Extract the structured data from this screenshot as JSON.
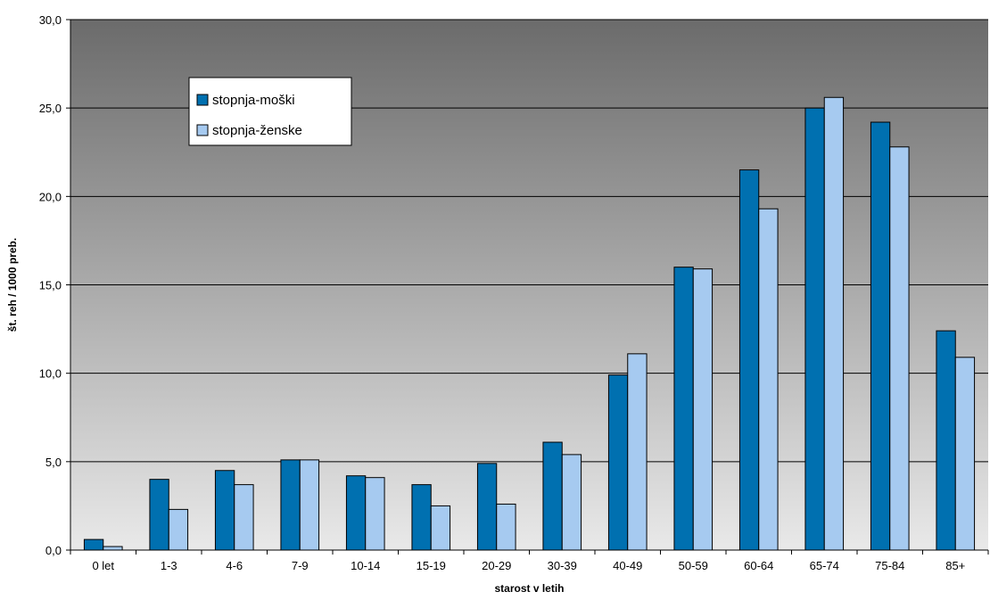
{
  "chart_data": {
    "type": "bar",
    "xlabel": "starost v letih",
    "ylabel": "št. reh / 1000 preb.",
    "ylim": [
      0,
      30
    ],
    "yticks": [
      "0,0",
      "5,0",
      "10,0",
      "15,0",
      "20,0",
      "25,0",
      "30,0"
    ],
    "grid": true,
    "legend_position": "top-left",
    "background": "vertical gradient from dark gray (top) to light gray (bottom)",
    "categories": [
      "0 let",
      "1-3",
      "4-6",
      "7-9",
      "10-14",
      "15-19",
      "20-29",
      "30-39",
      "40-49",
      "50-59",
      "60-64",
      "65-74",
      "75-84",
      "85+"
    ],
    "series": [
      {
        "name": "stopnja-moški",
        "color": "#0070b0",
        "values": [
          0.6,
          4.0,
          4.5,
          5.1,
          4.2,
          3.7,
          4.9,
          6.1,
          9.9,
          16.0,
          21.5,
          25.0,
          24.2,
          12.4
        ]
      },
      {
        "name": "stopnja-ženske",
        "color": "#a6caf0",
        "values": [
          0.2,
          2.3,
          3.7,
          5.1,
          4.1,
          2.5,
          2.6,
          5.4,
          11.1,
          15.9,
          19.3,
          25.6,
          22.8,
          10.9
        ]
      }
    ]
  }
}
